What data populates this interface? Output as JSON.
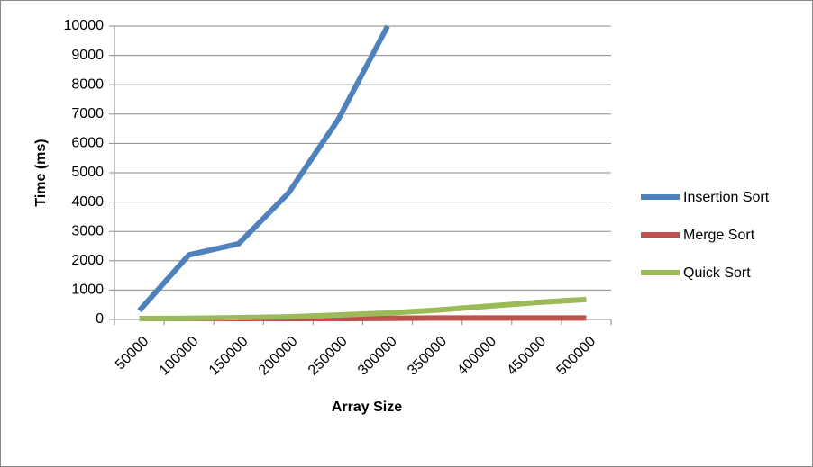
{
  "chart_data": {
    "type": "line",
    "x_label": "Array Size",
    "y_label": "Time (ms)",
    "categories": [
      "50000",
      "100000",
      "150000",
      "200000",
      "250000",
      "300000",
      "350000",
      "400000",
      "450000",
      "500000"
    ],
    "series": [
      {
        "name": "Insertion Sort",
        "color": "#4f81bd",
        "values": [
          300,
          2200,
          2580,
          4300,
          6800,
          10000,
          null,
          null,
          null,
          null
        ]
      },
      {
        "name": "Merge Sort",
        "color": "#c0504d",
        "values": [
          10,
          15,
          20,
          25,
          30,
          40,
          50,
          50,
          50,
          50
        ]
      },
      {
        "name": "Quick Sort",
        "color": "#9bbb59",
        "values": [
          30,
          40,
          60,
          90,
          150,
          220,
          320,
          450,
          580,
          680
        ]
      }
    ],
    "ylim": [
      0,
      10000
    ],
    "yticks": [
      0,
      1000,
      2000,
      3000,
      4000,
      5000,
      6000,
      7000,
      8000,
      9000,
      10000
    ],
    "grid": true
  }
}
